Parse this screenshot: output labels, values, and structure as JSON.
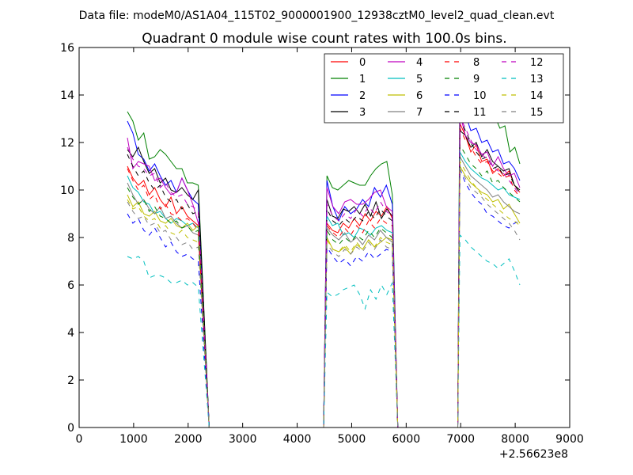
{
  "suptitle": "Data file: modeM0/AS1A04_115T02_9000001900_12938cztM0_level2_quad_clean.evt",
  "chart_data": {
    "type": "line",
    "title": "Quadrant 0 module wise count rates with 100.0s bins.",
    "xlabel": "",
    "ylabel": "",
    "x_offset_label": "+2.56623e8",
    "xlim": [
      0,
      9000
    ],
    "ylim": [
      0,
      16
    ],
    "xticks": [
      0,
      1000,
      2000,
      3000,
      4000,
      5000,
      6000,
      7000,
      8000,
      9000
    ],
    "yticks": [
      0,
      2,
      4,
      6,
      8,
      10,
      12,
      14,
      16
    ],
    "legend_position": "top-right",
    "legend_columns": 4,
    "segments": [
      {
        "x_start": 886,
        "x_end": 2186
      },
      {
        "x_start": 4546,
        "x_end": 5746
      },
      {
        "x_start": 6986,
        "x_end": 8086
      }
    ],
    "zero_x": [
      2386,
      2486,
      2586,
      2686,
      2786,
      2886,
      2986,
      3086,
      3186,
      3286,
      3386,
      3486,
      3586,
      3686,
      3786,
      3886,
      3986,
      4086,
      4186,
      4286,
      4386,
      4486,
      5846,
      5946,
      6046,
      6146,
      6246,
      6346,
      6446,
      6546,
      6646,
      6746,
      6846,
      6946
    ],
    "series": [
      {
        "name": "0",
        "color": "#ff0000",
        "style": "solid",
        "values": [
          [
            11.0,
            10.5,
            10.2,
            10.4,
            9.8,
            10.1,
            9.6,
            9.3,
            9.7,
            9.0,
            9.3,
            8.9,
            8.7,
            8.5
          ],
          [
            8.6,
            8.3,
            8.2,
            8.6,
            8.4,
            8.8,
            8.5,
            9.0,
            8.7,
            9.1,
            8.9,
            9.3,
            8.8
          ],
          [
            12.8,
            12.3,
            11.6,
            11.9,
            11.2,
            11.3,
            10.7,
            10.9,
            10.6,
            10.8,
            10.2,
            9.9
          ]
        ]
      },
      {
        "name": "1",
        "color": "#008000",
        "style": "solid",
        "values": [
          [
            13.3,
            12.9,
            12.1,
            12.4,
            11.3,
            11.4,
            11.7,
            11.5,
            11.2,
            10.9,
            10.9,
            10.3,
            10.3,
            10.2
          ],
          [
            10.6,
            10.1,
            10.0,
            10.2,
            10.4,
            10.3,
            10.2,
            10.2,
            10.6,
            10.9,
            11.1,
            11.2,
            9.8
          ],
          [
            15.3,
            14.7,
            14.2,
            13.7,
            13.3,
            13.4,
            13.0,
            13.1,
            12.6,
            12.7,
            11.6,
            11.8,
            11.1
          ]
        ]
      },
      {
        "name": "2",
        "color": "#0000ff",
        "style": "solid",
        "values": [
          [
            12.9,
            12.4,
            11.5,
            11.3,
            10.8,
            11.1,
            10.6,
            10.2,
            10.4,
            9.9,
            10.5,
            10.0,
            9.6,
            9.4
          ],
          [
            10.4,
            9.3,
            8.7,
            9.3,
            9.0,
            9.2,
            9.6,
            9.3,
            10.1,
            9.7,
            10.2,
            9.4
          ],
          [
            14.0,
            13.2,
            12.5,
            12.6,
            12.0,
            12.1,
            11.6,
            11.7,
            11.1,
            11.2,
            10.9,
            10.4
          ]
        ]
      },
      {
        "name": "3",
        "color": "#000000",
        "style": "solid",
        "values": [
          [
            11.7,
            11.4,
            11.8,
            11.2,
            10.7,
            10.9,
            10.3,
            10.5,
            10.0,
            9.9,
            10.1,
            9.8,
            9.6,
            10.0
          ],
          [
            9.6,
            8.9,
            8.8,
            9.2,
            9.1,
            9.3,
            9.0,
            9.4,
            8.9,
            9.5,
            8.8,
            9.2,
            8.9
          ],
          [
            12.5,
            12.3,
            11.8,
            12.0,
            11.4,
            11.7,
            11.2,
            11.0,
            10.8,
            10.9,
            10.2,
            10.0
          ]
        ]
      },
      {
        "name": "4",
        "color": "#bf00bf",
        "style": "solid",
        "values": [
          [
            12.2,
            10.9,
            11.2,
            11.1,
            11.0,
            10.4,
            10.5,
            10.1,
            9.8,
            9.9,
            10.5,
            10.0,
            9.4,
            8.6
          ],
          [
            10.1,
            9.3,
            9.0,
            9.5,
            9.6,
            9.4,
            9.4,
            9.6,
            9.9,
            10.0,
            9.3,
            9.1
          ],
          [
            13.2,
            12.3,
            12.0,
            11.9,
            11.5,
            11.6,
            11.0,
            11.4,
            10.9,
            10.6,
            10.7,
            10.1
          ]
        ]
      },
      {
        "name": "5",
        "color": "#00bfbf",
        "style": "solid",
        "values": [
          [
            10.6,
            10.1,
            9.9,
            9.5,
            9.4,
            9.0,
            9.1,
            8.8,
            8.6,
            8.8,
            8.7,
            8.5,
            8.6,
            8.4
          ],
          [
            8.9,
            8.5,
            8.6,
            8.1,
            8.2,
            8.0,
            8.4,
            8.3,
            8.1,
            8.4,
            8.5,
            8.3,
            8.2
          ],
          [
            11.6,
            11.2,
            10.9,
            10.7,
            10.5,
            10.4,
            10.2,
            10.0,
            10.1,
            9.8,
            9.7,
            9.6
          ]
        ]
      },
      {
        "name": "6",
        "color": "#bfbf00",
        "style": "solid",
        "values": [
          [
            9.8,
            9.3,
            9.5,
            9.0,
            8.9,
            9.1,
            8.7,
            8.6,
            8.8,
            8.5,
            8.4,
            8.6,
            8.3,
            8.5
          ],
          [
            8.0,
            7.5,
            7.4,
            7.6,
            7.3,
            7.7,
            7.5,
            7.9,
            7.6,
            7.8,
            8.0,
            7.9
          ],
          [
            11.0,
            10.6,
            10.3,
            10.1,
            9.9,
            9.8,
            9.5,
            9.6,
            9.2,
            9.4,
            9.0,
            8.6
          ]
        ]
      },
      {
        "name": "7",
        "color": "#808080",
        "style": "solid",
        "values": [
          [
            10.3,
            9.8,
            9.4,
            9.6,
            9.2,
            9.0,
            9.3,
            8.8,
            8.9,
            8.6,
            8.4,
            8.5,
            8.2,
            8.1
          ],
          [
            8.4,
            8.1,
            7.9,
            8.2,
            7.8,
            8.0,
            7.7,
            8.1,
            7.9,
            8.3,
            8.0,
            7.8
          ],
          [
            11.4,
            11.0,
            10.6,
            10.4,
            10.2,
            10.0,
            9.7,
            9.8,
            9.5,
            9.3,
            9.1,
            9.0
          ]
        ]
      },
      {
        "name": "8",
        "color": "#ff0000",
        "style": "dashed",
        "values": [
          [
            10.9,
            10.4,
            10.0,
            10.2,
            9.6,
            9.8,
            9.2,
            9.4,
            9.0,
            8.9,
            8.7,
            8.8,
            8.6,
            8.3
          ],
          [
            8.5,
            8.2,
            8.0,
            8.4,
            8.1,
            8.5,
            8.2,
            8.7,
            8.4,
            8.8,
            8.6,
            8.5
          ],
          [
            12.6,
            12.1,
            11.8,
            11.4,
            11.1,
            11.2,
            10.8,
            10.7,
            10.5,
            10.6,
            10.0,
            9.7
          ]
        ]
      },
      {
        "name": "9",
        "color": "#008000",
        "style": "dashed",
        "values": [
          [
            10.1,
            9.7,
            9.4,
            9.6,
            9.1,
            9.3,
            8.9,
            8.8,
            8.6,
            8.7,
            8.4,
            8.5,
            8.2,
            8.3
          ],
          [
            8.3,
            7.9,
            7.7,
            8.0,
            7.8,
            8.1,
            7.9,
            8.3,
            8.0,
            8.4,
            8.2,
            8.0
          ],
          [
            11.9,
            11.5,
            11.1,
            10.9,
            10.6,
            10.8,
            10.3,
            10.4,
            10.1,
            9.9,
            9.7,
            9.5
          ]
        ]
      },
      {
        "name": "10",
        "color": "#0000ff",
        "style": "dashed",
        "values": [
          [
            9.0,
            8.6,
            8.8,
            8.3,
            8.1,
            8.4,
            8.0,
            7.6,
            7.8,
            7.4,
            7.2,
            7.3,
            7.1,
            7.0
          ],
          [
            7.6,
            7.2,
            6.9,
            7.1,
            6.8,
            7.2,
            7.0,
            7.4,
            7.1,
            7.3,
            7.5,
            7.4
          ],
          [
            10.9,
            10.3,
            9.9,
            9.6,
            9.4,
            9.0,
            8.9,
            8.7,
            8.5,
            8.4,
            8.6,
            8.7
          ]
        ]
      },
      {
        "name": "11",
        "color": "#000000",
        "style": "dashed",
        "values": [
          [
            11.5,
            11.0,
            10.6,
            10.8,
            10.3,
            10.0,
            10.2,
            9.7,
            9.5,
            9.6,
            9.2,
            9.4,
            9.0,
            9.1
          ],
          [
            9.2,
            8.7,
            8.5,
            8.8,
            8.6,
            8.9,
            8.7,
            9.1,
            8.8,
            9.2,
            8.9,
            8.7
          ],
          [
            13.0,
            12.5,
            12.0,
            11.6,
            11.3,
            11.4,
            10.9,
            11.0,
            10.6,
            10.7,
            10.2,
            9.9
          ]
        ]
      },
      {
        "name": "12",
        "color": "#bf00bf",
        "style": "dashed",
        "values": [
          [
            11.8,
            11.3,
            11.0,
            10.9,
            10.6,
            10.7,
            10.1,
            10.3,
            9.9,
            9.7,
            9.8,
            9.4,
            9.3,
            9.1
          ],
          [
            9.4,
            8.9,
            8.7,
            9.0,
            8.8,
            9.2,
            8.9,
            9.3,
            9.0,
            9.5,
            9.1,
            8.9
          ],
          [
            13.1,
            12.6,
            12.1,
            11.7,
            11.5,
            11.3,
            11.0,
            10.8,
            10.7,
            10.4,
            10.1,
            9.8
          ]
        ]
      },
      {
        "name": "13",
        "color": "#00bfbf",
        "style": "dashed",
        "values": [
          [
            7.2,
            7.1,
            7.2,
            7.0,
            6.3,
            6.4,
            6.4,
            6.3,
            6.1,
            6.1,
            6.2,
            6.0,
            6.1,
            5.9
          ],
          [
            5.7,
            5.5,
            5.6,
            5.8,
            5.9,
            6.0,
            5.6,
            5.0,
            5.8,
            5.4,
            6.0,
            5.6,
            6.1
          ],
          [
            8.1,
            7.9,
            7.6,
            7.4,
            7.2,
            7.0,
            6.9,
            6.7,
            6.9,
            7.1,
            6.6,
            6.0
          ]
        ]
      },
      {
        "name": "14",
        "color": "#bfbf00",
        "style": "dashed",
        "values": [
          [
            9.6,
            9.2,
            9.3,
            8.9,
            8.7,
            8.8,
            8.4,
            8.5,
            8.2,
            8.1,
            8.3,
            8.0,
            7.9,
            7.8
          ],
          [
            7.9,
            7.5,
            7.4,
            7.7,
            7.4,
            7.8,
            7.5,
            7.9,
            7.6,
            8.0,
            7.8,
            7.7
          ],
          [
            11.2,
            10.8,
            10.4,
            10.1,
            9.8,
            9.6,
            9.4,
            9.2,
            9.0,
            8.8,
            8.7,
            8.5
          ]
        ]
      },
      {
        "name": "15",
        "color": "#808080",
        "style": "dashed",
        "values": [
          [
            9.5,
            9.1,
            8.8,
            8.9,
            8.5,
            8.6,
            8.2,
            8.3,
            7.9,
            8.0,
            7.7,
            7.8,
            7.5,
            7.6
          ],
          [
            7.7,
            7.4,
            7.2,
            7.5,
            7.3,
            7.6,
            7.4,
            7.8,
            7.5,
            7.9,
            7.6,
            7.5
          ],
          [
            10.9,
            10.5,
            10.1,
            9.9,
            9.7,
            9.4,
            9.2,
            9.0,
            8.8,
            8.6,
            8.3,
            7.9
          ]
        ]
      }
    ]
  }
}
